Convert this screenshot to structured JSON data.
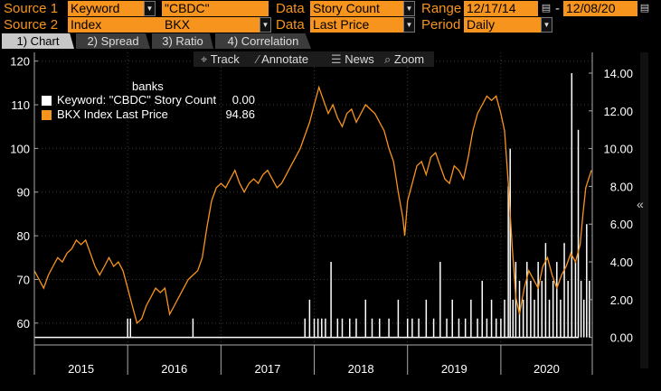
{
  "header": {
    "source1": {
      "label": "Source 1",
      "type": "Keyword",
      "value": "\"CBDC\"",
      "data_label": "Data",
      "data_value": "Story Count"
    },
    "source2": {
      "label": "Source 2",
      "type": "Index",
      "value": "BKX",
      "data_label": "Data",
      "data_value": "Last Price"
    },
    "range": {
      "label": "Range",
      "start": "12/17/14",
      "sep": "-",
      "end": "12/08/20"
    },
    "period": {
      "label": "Period",
      "value": "Daily"
    }
  },
  "tabs": [
    {
      "label": "1) Chart",
      "active": true
    },
    {
      "label": "2) Spread",
      "active": false
    },
    {
      "label": "3) Ratio",
      "active": false
    },
    {
      "label": "4) Correlation",
      "active": false
    }
  ],
  "toolbar": {
    "track_label": "Track",
    "annotate_label": "Annotate",
    "news_label": "News",
    "zoom_label": "Zoom"
  },
  "legend": {
    "title": "banks",
    "items": [
      {
        "name": "Keyword: \"CBDC\" Story Count",
        "value": "0.00",
        "color": "#ffffff"
      },
      {
        "name": "BKX Index Last Price",
        "value": "94.86",
        "color": "#f7941d"
      }
    ]
  },
  "sidebar": {
    "collapse_glyph": "«"
  },
  "chart_data": {
    "type": "line",
    "left_axis": {
      "ticks": [
        60,
        70,
        80,
        90,
        100,
        110,
        120
      ],
      "range": [
        55,
        122
      ]
    },
    "right_axis": {
      "ticks": [
        "0.00",
        "2.00",
        "4.00",
        "6.00",
        "8.00",
        "10.00",
        "12.00",
        "14.00"
      ],
      "range": [
        -0.4,
        15.1
      ]
    },
    "x_axis": {
      "years": [
        "2015",
        "2016",
        "2017",
        "2018",
        "2019",
        "2020"
      ],
      "range": [
        2015.0,
        2020.98
      ]
    },
    "series": [
      {
        "name": "BKX Index Last Price",
        "color": "#f7941d",
        "axis": "left",
        "points": [
          [
            2015.0,
            72
          ],
          [
            2015.05,
            70
          ],
          [
            2015.1,
            68
          ],
          [
            2015.15,
            71
          ],
          [
            2015.2,
            73
          ],
          [
            2015.25,
            75
          ],
          [
            2015.3,
            74
          ],
          [
            2015.35,
            76
          ],
          [
            2015.4,
            77
          ],
          [
            2015.45,
            79
          ],
          [
            2015.5,
            78
          ],
          [
            2015.55,
            79
          ],
          [
            2015.6,
            76
          ],
          [
            2015.65,
            73
          ],
          [
            2015.7,
            71
          ],
          [
            2015.75,
            73
          ],
          [
            2015.8,
            75
          ],
          [
            2015.85,
            73
          ],
          [
            2015.9,
            74
          ],
          [
            2015.95,
            72
          ],
          [
            2016.0,
            68
          ],
          [
            2016.05,
            64
          ],
          [
            2016.1,
            60
          ],
          [
            2016.15,
            61
          ],
          [
            2016.2,
            64
          ],
          [
            2016.25,
            66
          ],
          [
            2016.3,
            68
          ],
          [
            2016.35,
            67
          ],
          [
            2016.4,
            68
          ],
          [
            2016.45,
            62
          ],
          [
            2016.5,
            64
          ],
          [
            2016.55,
            66
          ],
          [
            2016.6,
            68
          ],
          [
            2016.65,
            70
          ],
          [
            2016.7,
            71
          ],
          [
            2016.75,
            72
          ],
          [
            2016.8,
            75
          ],
          [
            2016.85,
            82
          ],
          [
            2016.9,
            88
          ],
          [
            2016.95,
            91
          ],
          [
            2017.0,
            92
          ],
          [
            2017.05,
            91
          ],
          [
            2017.1,
            93
          ],
          [
            2017.15,
            95
          ],
          [
            2017.2,
            92
          ],
          [
            2017.25,
            90
          ],
          [
            2017.3,
            92
          ],
          [
            2017.35,
            93
          ],
          [
            2017.4,
            92
          ],
          [
            2017.45,
            94
          ],
          [
            2017.5,
            95
          ],
          [
            2017.55,
            93
          ],
          [
            2017.6,
            91
          ],
          [
            2017.65,
            92
          ],
          [
            2017.7,
            94
          ],
          [
            2017.75,
            96
          ],
          [
            2017.8,
            98
          ],
          [
            2017.85,
            100
          ],
          [
            2017.9,
            103
          ],
          [
            2017.95,
            106
          ],
          [
            2018.0,
            110
          ],
          [
            2018.05,
            114
          ],
          [
            2018.1,
            111
          ],
          [
            2018.15,
            108
          ],
          [
            2018.2,
            110
          ],
          [
            2018.25,
            107
          ],
          [
            2018.3,
            105
          ],
          [
            2018.35,
            108
          ],
          [
            2018.4,
            109
          ],
          [
            2018.45,
            106
          ],
          [
            2018.5,
            108
          ],
          [
            2018.55,
            110
          ],
          [
            2018.6,
            109
          ],
          [
            2018.65,
            108
          ],
          [
            2018.7,
            106
          ],
          [
            2018.75,
            104
          ],
          [
            2018.8,
            100
          ],
          [
            2018.85,
            97
          ],
          [
            2018.9,
            90
          ],
          [
            2018.95,
            84
          ],
          [
            2018.97,
            80
          ],
          [
            2019.0,
            88
          ],
          [
            2019.05,
            92
          ],
          [
            2019.1,
            96
          ],
          [
            2019.15,
            97
          ],
          [
            2019.2,
            94
          ],
          [
            2019.25,
            98
          ],
          [
            2019.3,
            99
          ],
          [
            2019.35,
            96
          ],
          [
            2019.4,
            93
          ],
          [
            2019.45,
            92
          ],
          [
            2019.5,
            96
          ],
          [
            2019.55,
            95
          ],
          [
            2019.6,
            93
          ],
          [
            2019.65,
            98
          ],
          [
            2019.7,
            104
          ],
          [
            2019.75,
            108
          ],
          [
            2019.8,
            110
          ],
          [
            2019.85,
            112
          ],
          [
            2019.9,
            111
          ],
          [
            2019.95,
            112
          ],
          [
            2020.0,
            108
          ],
          [
            2020.04,
            104
          ],
          [
            2020.08,
            92
          ],
          [
            2020.12,
            78
          ],
          [
            2020.16,
            66
          ],
          [
            2020.2,
            62
          ],
          [
            2020.25,
            68
          ],
          [
            2020.3,
            72
          ],
          [
            2020.35,
            70
          ],
          [
            2020.4,
            68
          ],
          [
            2020.45,
            73
          ],
          [
            2020.5,
            75
          ],
          [
            2020.55,
            71
          ],
          [
            2020.6,
            68
          ],
          [
            2020.65,
            71
          ],
          [
            2020.7,
            73
          ],
          [
            2020.75,
            76
          ],
          [
            2020.8,
            74
          ],
          [
            2020.85,
            78
          ],
          [
            2020.88,
            85
          ],
          [
            2020.91,
            91
          ],
          [
            2020.94,
            93
          ],
          [
            2020.97,
            95
          ]
        ]
      },
      {
        "name": "Keyword: \"CBDC\" Story Count",
        "color": "#ffffff",
        "axis": "right",
        "bars": [
          [
            2016.0,
            1
          ],
          [
            2016.03,
            1
          ],
          [
            2016.7,
            1
          ],
          [
            2017.9,
            1
          ],
          [
            2017.95,
            2
          ],
          [
            2018.0,
            1
          ],
          [
            2018.04,
            1
          ],
          [
            2018.08,
            1
          ],
          [
            2018.12,
            1
          ],
          [
            2018.18,
            4
          ],
          [
            2018.25,
            1
          ],
          [
            2018.3,
            1
          ],
          [
            2018.38,
            1
          ],
          [
            2018.45,
            1
          ],
          [
            2018.55,
            2
          ],
          [
            2018.62,
            1
          ],
          [
            2018.7,
            1
          ],
          [
            2018.8,
            1
          ],
          [
            2018.9,
            2
          ],
          [
            2019.0,
            1
          ],
          [
            2019.05,
            1
          ],
          [
            2019.12,
            1
          ],
          [
            2019.2,
            2
          ],
          [
            2019.28,
            1
          ],
          [
            2019.35,
            4
          ],
          [
            2019.42,
            1
          ],
          [
            2019.48,
            2
          ],
          [
            2019.55,
            1
          ],
          [
            2019.62,
            1
          ],
          [
            2019.68,
            2
          ],
          [
            2019.75,
            1
          ],
          [
            2019.8,
            3
          ],
          [
            2019.85,
            1
          ],
          [
            2019.9,
            2
          ],
          [
            2019.95,
            1
          ],
          [
            2020.0,
            1
          ],
          [
            2020.04,
            2
          ],
          [
            2020.08,
            8
          ],
          [
            2020.1,
            10
          ],
          [
            2020.13,
            2
          ],
          [
            2020.16,
            4
          ],
          [
            2020.2,
            3
          ],
          [
            2020.24,
            2
          ],
          [
            2020.28,
            4
          ],
          [
            2020.32,
            3
          ],
          [
            2020.36,
            2
          ],
          [
            2020.4,
            4
          ],
          [
            2020.44,
            3
          ],
          [
            2020.48,
            5
          ],
          [
            2020.52,
            2
          ],
          [
            2020.56,
            3
          ],
          [
            2020.6,
            4
          ],
          [
            2020.64,
            2
          ],
          [
            2020.68,
            5
          ],
          [
            2020.72,
            3
          ],
          [
            2020.76,
            14
          ],
          [
            2020.8,
            4
          ],
          [
            2020.83,
            11
          ],
          [
            2020.86,
            3
          ],
          [
            2020.89,
            2
          ],
          [
            2020.92,
            6
          ],
          [
            2020.95,
            3
          ]
        ]
      }
    ]
  }
}
